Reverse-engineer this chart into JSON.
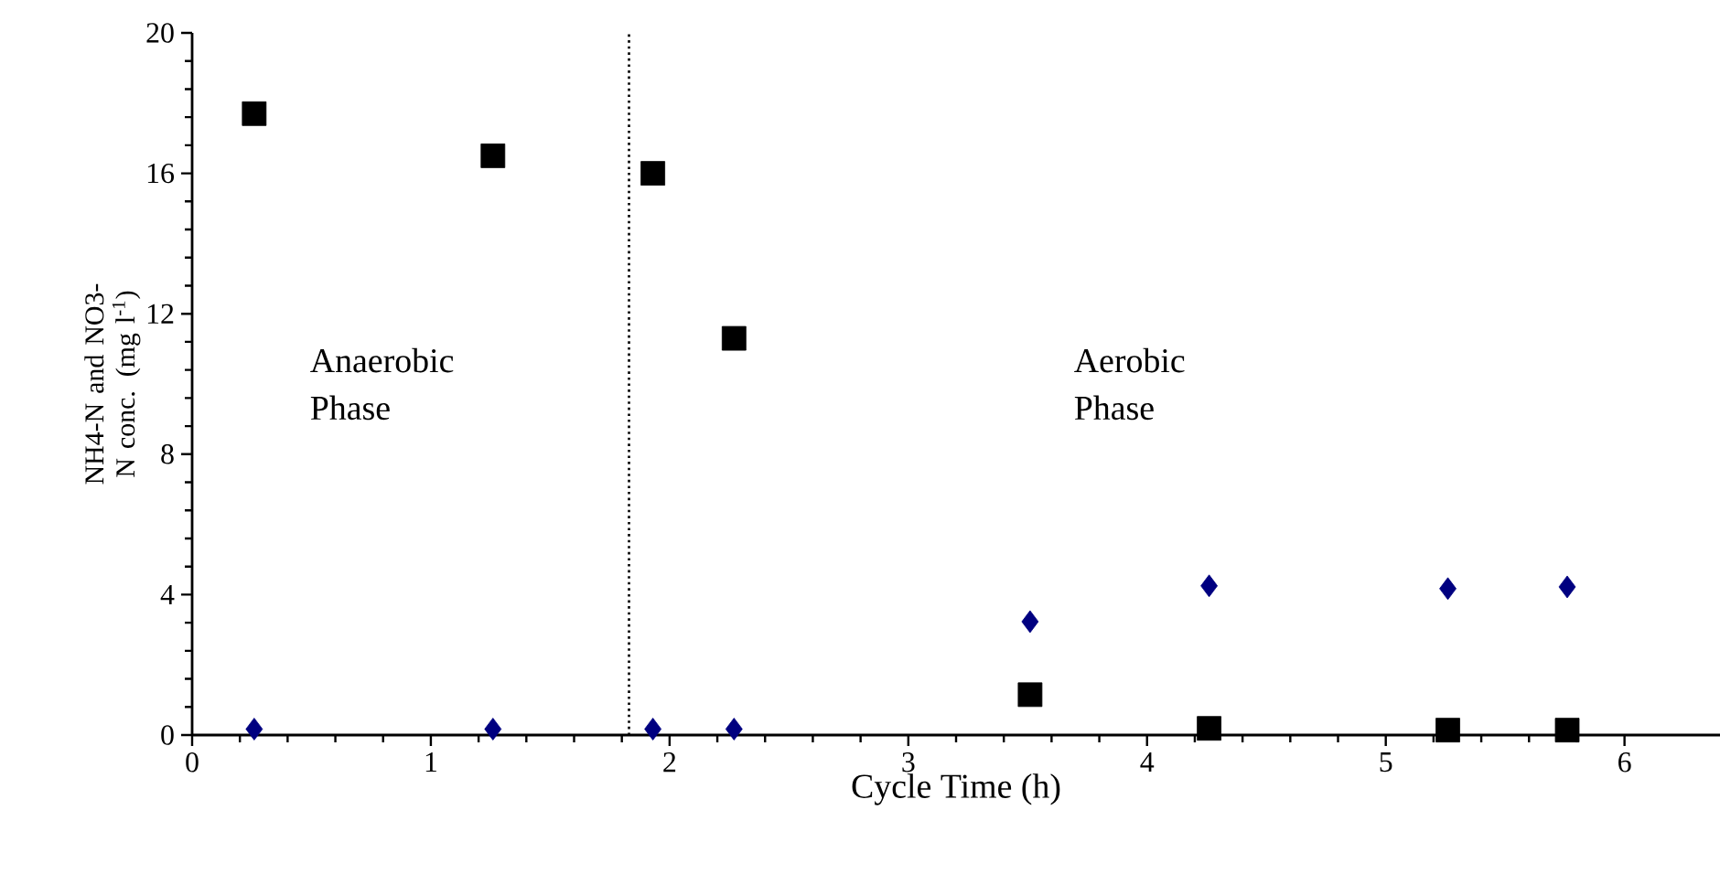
{
  "chart_data": {
    "type": "scatter",
    "xlabel": "Cycle Time (h)",
    "ylabel": "NH4-N and NO3-N conc. (mg l$^{-1}$)",
    "xlim": [
      0,
      6.4
    ],
    "xticks": [
      0,
      1,
      2,
      3,
      4,
      5,
      6
    ],
    "ylim": [
      0,
      20
    ],
    "yticks": [
      0,
      4,
      8,
      12,
      16,
      20
    ],
    "series": [
      {
        "color": "#000000",
        "marker": "square",
        "x": [
          0.26,
          1.26,
          1.93,
          2.27,
          3.51,
          4.26,
          5.26,
          5.76
        ],
        "values": [
          17.7,
          16.5,
          16.0,
          11.3,
          1.15,
          0.19,
          0.14,
          0.14
        ]
      },
      {
        "color": "#000080",
        "marker": "diamond",
        "x": [
          0.26,
          1.26,
          1.93,
          2.27,
          3.51,
          4.26,
          5.26,
          5.76
        ],
        "values": [
          0.17,
          0.17,
          0.17,
          0.17,
          3.23,
          4.25,
          4.17,
          4.22
        ]
      }
    ],
    "ref_lines": [
      {
        "axis": "x",
        "value": 1.83,
        "line_style": "dotted"
      }
    ],
    "annotations": [
      "Anaerobic Phase",
      "Aerobic Phase"
    ]
  }
}
